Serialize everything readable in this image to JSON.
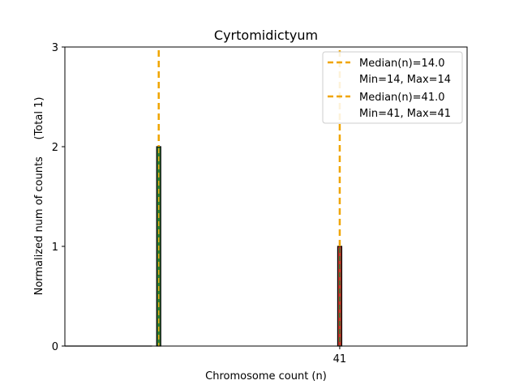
{
  "chart_data": {
    "type": "bar",
    "title": "Cyrtomidictyum",
    "xlabel": "Chromosome count (n)",
    "ylabel": "Normalized num of counts     (Total 1)",
    "xlim": [
      0,
      60
    ],
    "ylim": [
      0,
      3
    ],
    "yticks": [
      0,
      1,
      2,
      3
    ],
    "xticks": [
      41
    ],
    "grid": false,
    "legend_placement": "top-right",
    "series": [
      {
        "values": [
          {
            "x": 14,
            "y": 2,
            "fill": "#2e7d32",
            "stripe": "#e6a817"
          },
          {
            "x": 41,
            "y": 1,
            "fill": "#c0392b",
            "stripe": "#2e7d32"
          }
        ]
      }
    ],
    "medians": [
      {
        "value": 14.0,
        "color": "#f0a500",
        "label": "Median(n)=14.0",
        "range_label": "Min=14, Max=14"
      },
      {
        "value": 41.0,
        "color": "#f0a500",
        "label": "Median(n)=41.0",
        "range_label": "Min=41, Max=41"
      }
    ]
  }
}
